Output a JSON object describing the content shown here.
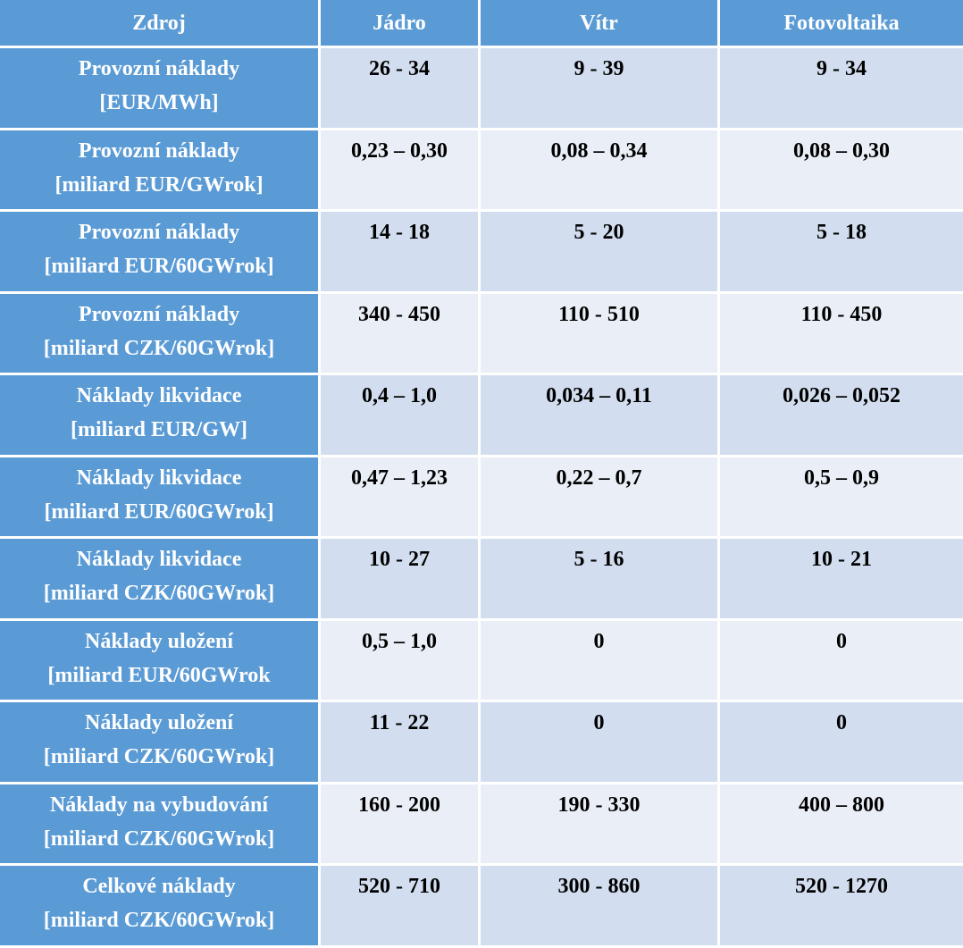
{
  "headers": [
    "Zdroj",
    "Jádro",
    "Vítr",
    "Fotovoltaika"
  ],
  "rows": [
    {
      "label": [
        "Provozní náklady",
        "[EUR/MWh]"
      ],
      "values": [
        "26 - 34",
        "9 - 39",
        "9 - 34"
      ]
    },
    {
      "label": [
        "Provozní náklady",
        "[miliard EUR/GWrok]"
      ],
      "values": [
        "0,23 – 0,30",
        "0,08 – 0,34",
        "0,08 – 0,30"
      ]
    },
    {
      "label": [
        "Provozní náklady",
        "[miliard EUR/60GWrok]"
      ],
      "values": [
        "14 - 18",
        "5 - 20",
        "5 - 18"
      ]
    },
    {
      "label": [
        "Provozní náklady",
        "[miliard CZK/60GWrok]"
      ],
      "values": [
        "340 - 450",
        "110 - 510",
        "110 - 450"
      ]
    },
    {
      "label": [
        "Náklady likvidace",
        "[miliard EUR/GW]"
      ],
      "values": [
        "0,4 – 1,0",
        "0,034 – 0,11",
        "0,026 – 0,052"
      ]
    },
    {
      "label": [
        "Náklady likvidace",
        "[miliard EUR/60GWrok]"
      ],
      "values": [
        "0,47 – 1,23",
        "0,22 – 0,7",
        "0,5 – 0,9"
      ]
    },
    {
      "label": [
        "Náklady likvidace",
        "[miliard CZK/60GWrok]"
      ],
      "values": [
        "10 - 27",
        "5 - 16",
        "10 - 21"
      ]
    },
    {
      "label": [
        "Náklady uložení",
        "[miliard EUR/60GWrok"
      ],
      "values": [
        "0,5 – 1,0",
        "0",
        "0"
      ]
    },
    {
      "label": [
        "Náklady uložení",
        "[miliard CZK/60GWrok]"
      ],
      "values": [
        "11 - 22",
        "0",
        "0"
      ]
    },
    {
      "label": [
        "Náklady na vybudování",
        "[miliard CZK/60GWrok]"
      ],
      "values": [
        "160 - 200",
        "190 - 330",
        "400 – 800"
      ]
    },
    {
      "label": [
        "Celkové náklady",
        "[miliard CZK/60GWrok]"
      ],
      "values": [
        "520 - 710",
        "300 - 860",
        "520 - 1270"
      ]
    }
  ]
}
